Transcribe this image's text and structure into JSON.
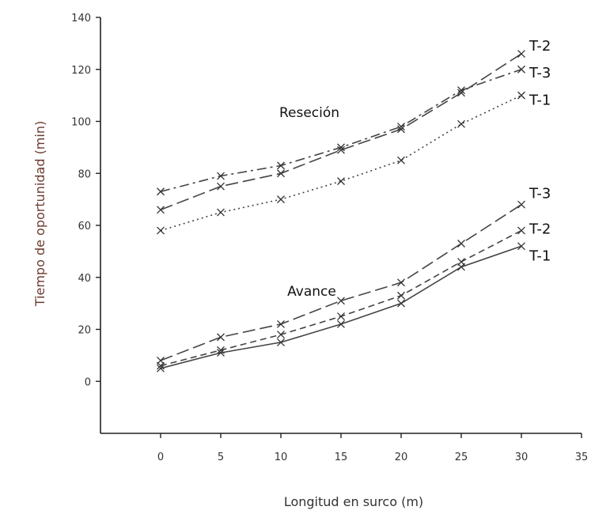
{
  "chart_data": {
    "type": "line",
    "xlabel": "Longitud en surco (m)",
    "ylabel": "Tiempo de oportunidad (min)",
    "xlim": [
      -5,
      35
    ],
    "ylim": [
      -20,
      140
    ],
    "x_ticks": [
      0,
      5,
      10,
      15,
      20,
      25,
      30,
      35
    ],
    "y_ticks": [
      0,
      20,
      40,
      60,
      80,
      100,
      120,
      140
    ],
    "grid": false,
    "marker": "x",
    "x": [
      0,
      5,
      10,
      15,
      20,
      25,
      30
    ],
    "annotations": [
      "Reseción",
      "Avance"
    ],
    "groups": [
      {
        "label": "Reseción",
        "series": [
          {
            "name": "T-1",
            "dash": "dotted",
            "values": [
              58,
              65,
              70,
              77,
              85,
              99,
              110
            ]
          },
          {
            "name": "T-2",
            "dash": "long-dash",
            "values": [
              66,
              75,
              80,
              89,
              97,
              111,
              126
            ]
          },
          {
            "name": "T-3",
            "dash": "dash-dot",
            "values": [
              73,
              79,
              83,
              90,
              98,
              112,
              120
            ]
          }
        ]
      },
      {
        "label": "Avance",
        "series": [
          {
            "name": "T-1",
            "dash": "solid",
            "values": [
              5,
              11,
              15,
              22,
              30,
              44,
              52
            ]
          },
          {
            "name": "T-2",
            "dash": "short-dash",
            "values": [
              6,
              12,
              18,
              25,
              33,
              46,
              58
            ]
          },
          {
            "name": "T-3",
            "dash": "long-dash",
            "values": [
              8,
              17,
              22,
              31,
              38,
              53,
              68
            ]
          }
        ]
      }
    ]
  }
}
